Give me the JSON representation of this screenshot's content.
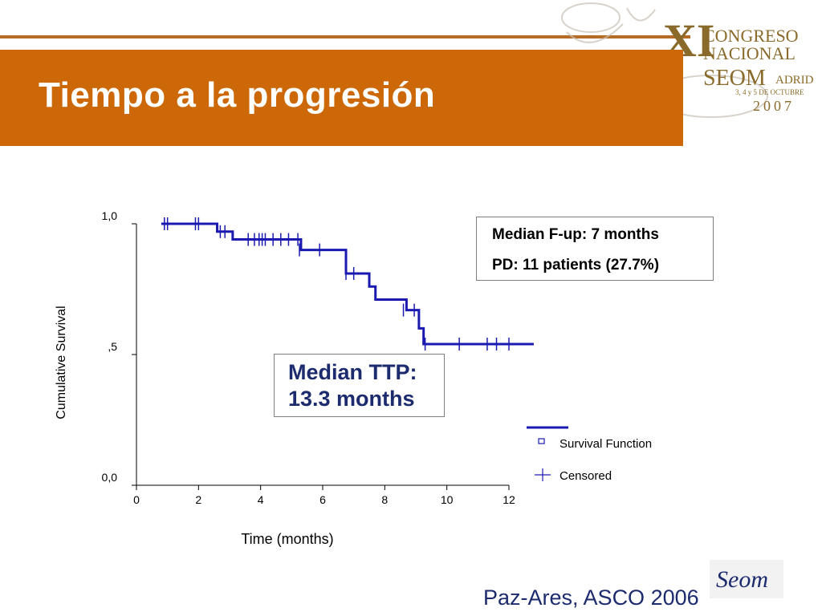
{
  "slide": {
    "title": "Tiempo a la progresión",
    "citation": "Paz-Ares, ASCO 2006",
    "accent_color": "#cc6808",
    "text_blue": "#1c2a6e"
  },
  "header_logo": {
    "line1": "CONGRESO",
    "line2": "NACIONAL",
    "numeral": "XI",
    "brand": "SEOM",
    "city": "ADRID",
    "dates": "3, 4 y 5 DE OCTUBRE",
    "year": "2007",
    "color": "#8a6a2a"
  },
  "footer_logo": {
    "text": "Seom",
    "color": "#1c2a6e"
  },
  "info_box": {
    "line1": "Median F-up: 7 months",
    "line2": "PD: 11 patients (27.7%)"
  },
  "median_box": {
    "line1": "Median TTP:",
    "line2": "13.3 months"
  },
  "chart_data": {
    "type": "line",
    "xlabel": "Time (months)",
    "ylabel": "Cumulative Survival",
    "xlim": [
      0,
      12
    ],
    "ylim": [
      0,
      1
    ],
    "x_ticks": [
      0,
      2,
      4,
      6,
      8,
      10,
      12
    ],
    "x_tick_labels": [
      "0",
      "2",
      "4",
      "6",
      "8",
      "10",
      "12"
    ],
    "y_ticks": [
      0,
      0.5,
      1
    ],
    "y_tick_labels": [
      "0,0",
      ",5",
      "1,0"
    ],
    "line_color": "#1a1ab0",
    "series": [
      {
        "name": "Survival Function",
        "step_points": [
          [
            0.8,
            1.0
          ],
          [
            2.6,
            1.0
          ],
          [
            2.6,
            0.97
          ],
          [
            3.1,
            0.97
          ],
          [
            3.1,
            0.94
          ],
          [
            5.3,
            0.94
          ],
          [
            5.3,
            0.9
          ],
          [
            6.75,
            0.9
          ],
          [
            6.75,
            0.81
          ],
          [
            7.5,
            0.81
          ],
          [
            7.5,
            0.76
          ],
          [
            7.7,
            0.76
          ],
          [
            7.7,
            0.71
          ],
          [
            8.7,
            0.71
          ],
          [
            8.7,
            0.67
          ],
          [
            9.1,
            0.67
          ],
          [
            9.1,
            0.6
          ],
          [
            9.25,
            0.6
          ],
          [
            9.25,
            0.54
          ],
          [
            12.8,
            0.54
          ]
        ]
      },
      {
        "name": "Censored",
        "points": [
          [
            0.9,
            1.0
          ],
          [
            1.0,
            1.0
          ],
          [
            1.9,
            1.0
          ],
          [
            2.0,
            1.0
          ],
          [
            2.7,
            0.97
          ],
          [
            2.85,
            0.97
          ],
          [
            3.6,
            0.94
          ],
          [
            3.8,
            0.94
          ],
          [
            3.95,
            0.94
          ],
          [
            4.05,
            0.94
          ],
          [
            4.15,
            0.94
          ],
          [
            4.4,
            0.94
          ],
          [
            4.65,
            0.94
          ],
          [
            4.9,
            0.94
          ],
          [
            5.2,
            0.94
          ],
          [
            5.25,
            0.9
          ],
          [
            5.9,
            0.9
          ],
          [
            6.75,
            0.81
          ],
          [
            7.0,
            0.81
          ],
          [
            8.6,
            0.67
          ],
          [
            8.95,
            0.67
          ],
          [
            9.3,
            0.54
          ],
          [
            10.4,
            0.54
          ],
          [
            11.3,
            0.54
          ],
          [
            11.6,
            0.54
          ],
          [
            12.0,
            0.54
          ]
        ]
      }
    ],
    "legend": {
      "placement": "bottom-right",
      "items": [
        "Survival Function",
        "Censored"
      ]
    }
  }
}
